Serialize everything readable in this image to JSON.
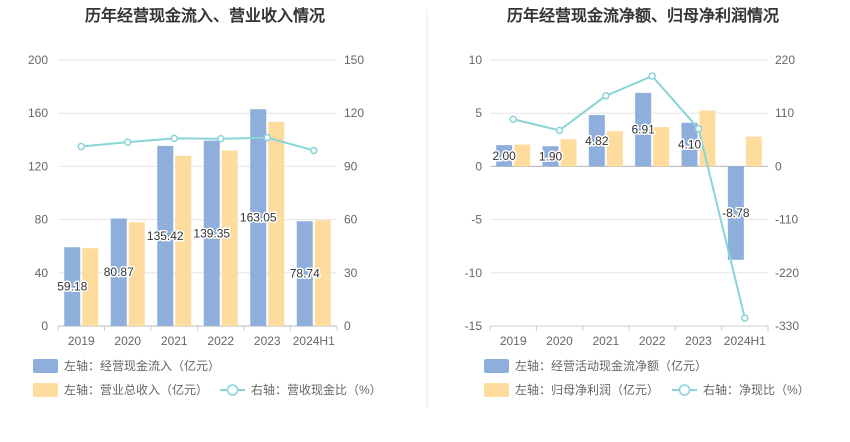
{
  "charts": [
    {
      "type": "bar",
      "title": "历年经营现金流入、营业收入情况",
      "categories": [
        "2019",
        "2020",
        "2021",
        "2022",
        "2023",
        "2024H1"
      ],
      "left_ylim": [
        0,
        200
      ],
      "left_ticks": [
        "0",
        "40",
        "80",
        "120",
        "160",
        "200"
      ],
      "right_ylim": [
        0,
        150
      ],
      "right_ticks": [
        "0",
        "30",
        "60",
        "90",
        "120",
        "150"
      ],
      "series": [
        {
          "name": "左轴：经营现金流入（亿元）",
          "kind": "bar",
          "axis": "left",
          "color": "#8eaedc",
          "values": [
            59.18,
            80.87,
            135.42,
            139.35,
            163.05,
            78.74
          ],
          "labels": [
            "59.18",
            "80.87",
            "135.42",
            "139.35",
            "163.05",
            "78.74"
          ]
        },
        {
          "name": "左轴：营业总收入（亿元）",
          "kind": "bar",
          "axis": "left",
          "color": "#fddc9e",
          "values": [
            58.5,
            78.0,
            128.0,
            132.0,
            153.5,
            79.5
          ]
        },
        {
          "name": "右轴：营收现金比（%）",
          "kind": "line",
          "axis": "right",
          "color": "#88d4d8",
          "values": [
            101.2,
            103.7,
            105.8,
            105.6,
            106.2,
            99.0
          ]
        }
      ]
    },
    {
      "type": "bar",
      "title": "历年经营现金流净额、归母净利润情况",
      "categories": [
        "2019",
        "2020",
        "2021",
        "2022",
        "2023",
        "2024H1"
      ],
      "left_ylim": [
        -15,
        10
      ],
      "left_ticks": [
        "-15",
        "-10",
        "-5",
        "0",
        "5",
        "10"
      ],
      "right_ylim": [
        -330,
        220
      ],
      "right_ticks": [
        "-330",
        "-220",
        "-110",
        "0",
        "110",
        "220"
      ],
      "series": [
        {
          "name": "左轴：经营活动现金流净额（亿元）",
          "kind": "bar",
          "axis": "left",
          "color": "#8eaedc",
          "values": [
            2.0,
            1.9,
            4.82,
            6.91,
            4.1,
            -8.78
          ],
          "labels": [
            "2.00",
            "1.90",
            "4.82",
            "6.91",
            "4.10",
            "-8.78"
          ]
        },
        {
          "name": "左轴：归母净利润（亿元）",
          "kind": "bar",
          "axis": "left",
          "color": "#fddc9e",
          "values": [
            2.05,
            2.55,
            3.3,
            3.7,
            5.25,
            2.8
          ]
        },
        {
          "name": "右轴：净现比（%）",
          "kind": "line",
          "axis": "right",
          "color": "#88d4d8",
          "values": [
            97.5,
            74.5,
            146.0,
            186.8,
            78.0,
            -313.6
          ]
        }
      ]
    }
  ]
}
